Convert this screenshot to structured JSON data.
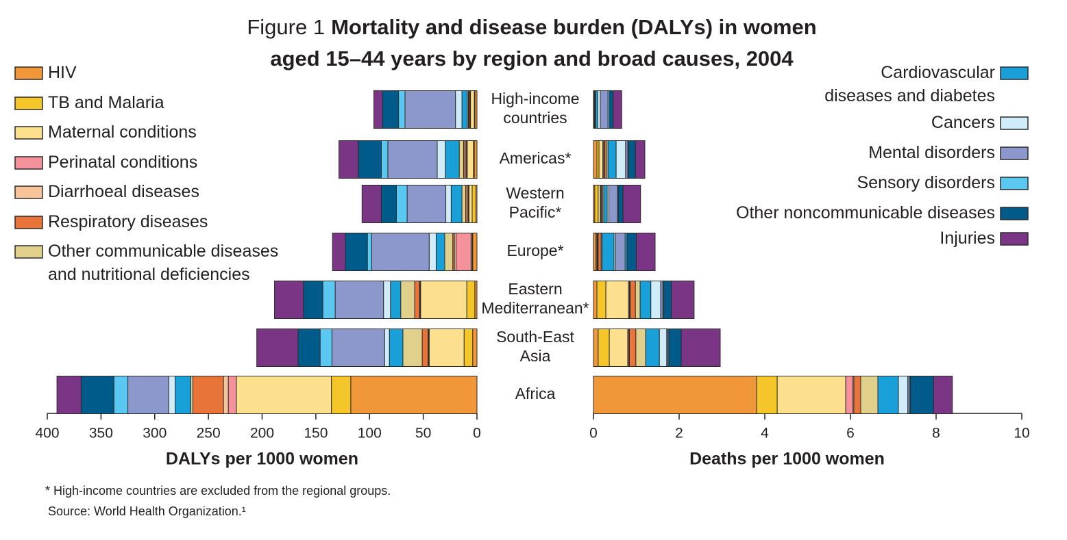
{
  "figure_label": "Figure 1",
  "title": "Mortality and disease burden (DALYs) in women\naged 15–44 years by region and broad causes, 2004",
  "footnote": "* High-income countries are excluded from the regional groups.",
  "source": "Source: World Health Organization.¹",
  "chart_data": [
    {
      "type": "bar",
      "orientation": "horizontal",
      "stacked": true,
      "x_label": "DALYs per 1000 women",
      "categories": [
        "High-income\ncountries",
        "Americas*",
        "Western\nPacific*",
        "Europe*",
        "Eastern\nMediterranean*",
        "South-East\nAsia",
        "Africa"
      ],
      "xlim": [
        400,
        0
      ],
      "xticks": [
        400,
        350,
        300,
        250,
        200,
        150,
        100,
        50,
        0
      ],
      "series": [
        {
          "name": "HIV",
          "color": "#f0973a",
          "values": [
            2,
            2.5,
            1,
            4,
            2,
            4,
            117.5
          ]
        },
        {
          "name": "TB and Malaria",
          "color": "#f5c62a",
          "values": [
            0.5,
            1,
            3.5,
            0.5,
            7.5,
            8,
            18
          ]
        },
        {
          "name": "Maternal conditions",
          "color": "#fde08e",
          "values": [
            3.5,
            5.5,
            3,
            1,
            43,
            32.5,
            88.5
          ]
        },
        {
          "name": "Perinatal conditions",
          "color": "#f4919a",
          "values": [
            0.5,
            1,
            0.5,
            14,
            0.5,
            0.5,
            7.5
          ]
        },
        {
          "name": "Diarrhoeal diseases",
          "color": "#f7c49a",
          "values": [
            0.5,
            1,
            1,
            1.5,
            0.5,
            0.5,
            4.5
          ]
        },
        {
          "name": "Respiratory diseases",
          "color": "#e8743a",
          "values": [
            1,
            1.5,
            1.5,
            1.5,
            4.5,
            5.5,
            28.5
          ]
        },
        {
          "name": "Other communicable diseases\nand nutritional deficiencies",
          "color": "#e0d08c",
          "values": [
            1,
            4,
            3.5,
            7.5,
            13,
            18,
            2
          ]
        },
        {
          "name": "Cardiovascular\ndiseases and diabetes",
          "color": "#1aa0d8",
          "values": [
            5,
            13,
            10,
            8,
            9.5,
            12.5,
            14.5
          ]
        },
        {
          "name": "Cancers",
          "color": "#d0ecf8",
          "values": [
            6,
            7.5,
            5,
            6.5,
            6.5,
            4.5,
            6
          ]
        },
        {
          "name": "Mental disorders",
          "color": "#8c97cc",
          "values": [
            47,
            46,
            36,
            53.5,
            45,
            49,
            38
          ]
        },
        {
          "name": "Sensory disorders",
          "color": "#5ac8f0",
          "values": [
            6,
            6,
            10,
            4,
            11.5,
            11,
            13
          ]
        },
        {
          "name": "Other noncommunicable diseases",
          "color": "#005a8a",
          "values": [
            15,
            21.5,
            14,
            20.5,
            18,
            20.5,
            30.5
          ]
        },
        {
          "name": "Injuries",
          "color": "#7b3585",
          "values": [
            8,
            18,
            18,
            12,
            27,
            38.5,
            22.5
          ]
        }
      ]
    },
    {
      "type": "bar",
      "orientation": "horizontal",
      "stacked": true,
      "x_label": "Deaths per 1000 women",
      "categories": [
        "High-income\ncountries",
        "Americas*",
        "Western\nPacific*",
        "Europe*",
        "Eastern\nMediterranean*",
        "South-East\nAsia",
        "Africa"
      ],
      "xlim": [
        0,
        10
      ],
      "xticks": [
        0,
        2,
        4,
        6,
        8,
        10
      ],
      "series": [
        {
          "name": "HIV",
          "color": "#f0973a",
          "values": [
            0.01,
            0.08,
            0.03,
            0.06,
            0.08,
            0.11,
            3.81
          ]
        },
        {
          "name": "TB and Malaria",
          "color": "#f5c62a",
          "values": [
            0.01,
            0.05,
            0.08,
            0.02,
            0.21,
            0.26,
            0.48
          ]
        },
        {
          "name": "Maternal conditions",
          "color": "#fde08e",
          "values": [
            0.01,
            0.09,
            0.05,
            0.01,
            0.53,
            0.43,
            1.6
          ]
        },
        {
          "name": "Perinatal conditions",
          "color": "#f4919a",
          "values": [
            0,
            0.02,
            0.01,
            0.01,
            0.02,
            0.02,
            0.17
          ]
        },
        {
          "name": "Diarrhoeal diseases",
          "color": "#f7c49a",
          "values": [
            0,
            0.02,
            0.02,
            0.01,
            0.02,
            0.02,
            0.02
          ]
        },
        {
          "name": "Respiratory diseases",
          "color": "#e8743a",
          "values": [
            0.01,
            0.04,
            0.02,
            0.07,
            0.12,
            0.15,
            0.16
          ]
        },
        {
          "name": "Other communicable diseases\nand nutritional deficiencies",
          "color": "#e0d08c",
          "values": [
            0.01,
            0.04,
            0.03,
            0.02,
            0.11,
            0.23,
            0.4
          ]
        },
        {
          "name": "Cardiovascular\ndiseases and diabetes",
          "color": "#1aa0d8",
          "values": [
            0.05,
            0.19,
            0.08,
            0.28,
            0.25,
            0.32,
            0.48
          ]
        },
        {
          "name": "Cancers",
          "color": "#d0ecf8",
          "values": [
            0.06,
            0.22,
            0.04,
            0.04,
            0.23,
            0.17,
            0.22
          ]
        },
        {
          "name": "Mental disorders",
          "color": "#8c97cc",
          "values": [
            0.18,
            0.05,
            0.2,
            0.22,
            0.05,
            0.03,
            0.04
          ]
        },
        {
          "name": "Sensory disorders",
          "color": "#5ac8f0",
          "values": [
            0.04,
            0.02,
            0.02,
            0.04,
            0.02,
            0.02,
            0.02
          ]
        },
        {
          "name": "Other noncommunicable diseases",
          "color": "#005a8a",
          "values": [
            0.08,
            0.16,
            0.11,
            0.22,
            0.18,
            0.29,
            0.54
          ]
        },
        {
          "name": "Injuries",
          "color": "#7b3585",
          "values": [
            0.2,
            0.22,
            0.41,
            0.44,
            0.53,
            0.91,
            0.44
          ]
        }
      ]
    }
  ]
}
